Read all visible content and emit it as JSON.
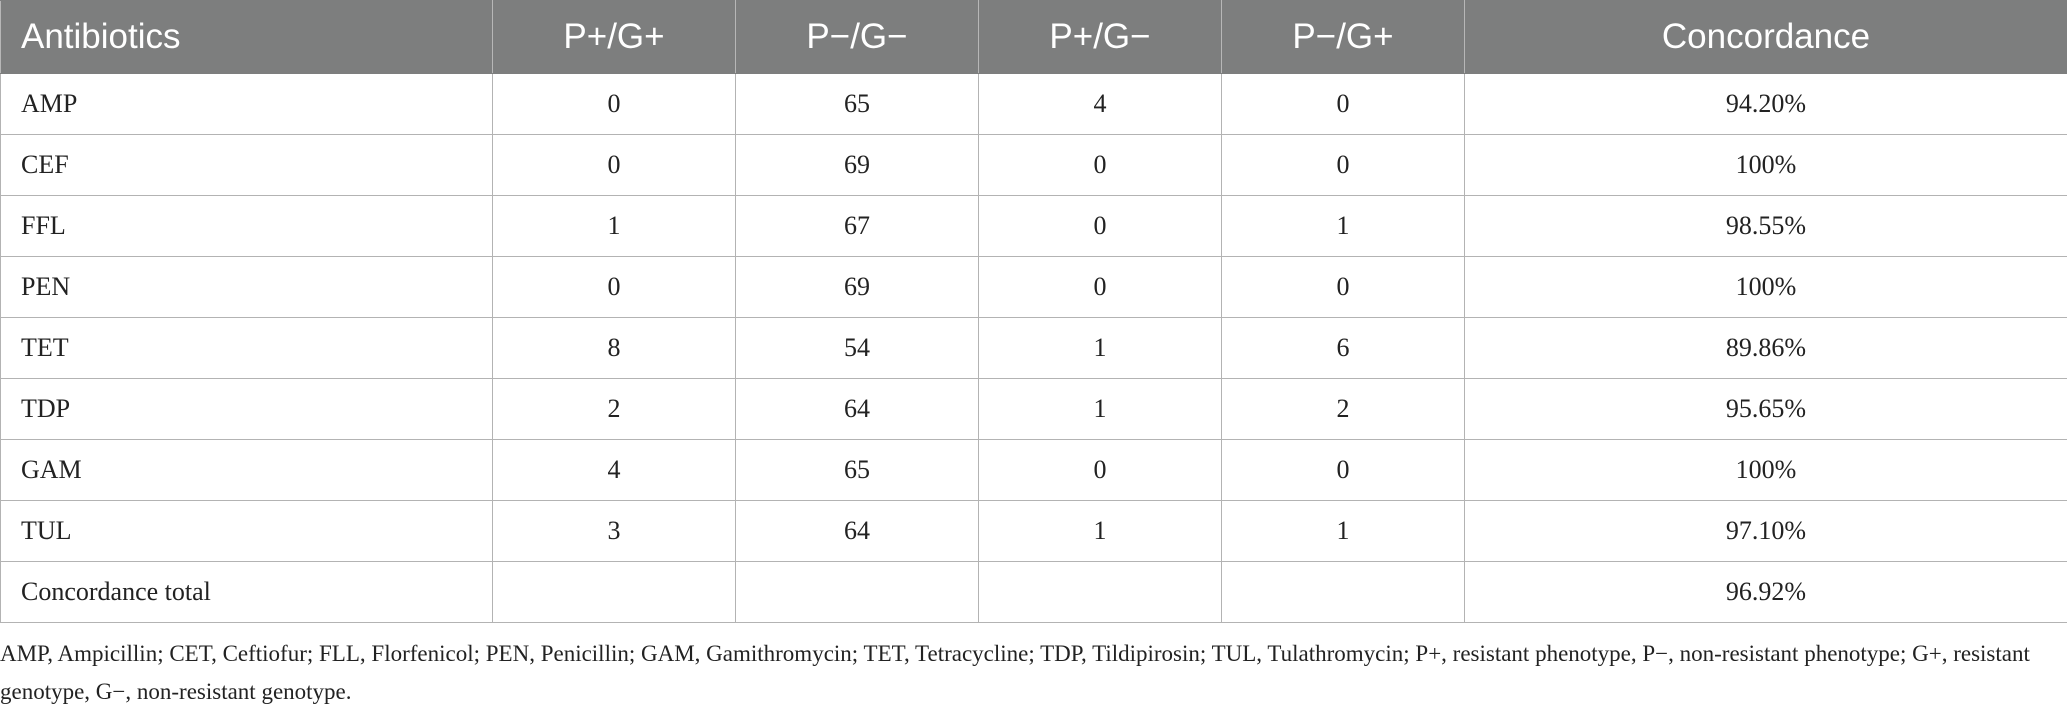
{
  "table": {
    "headers": [
      "Antibiotics",
      "P+/G+",
      "P−/G−",
      "P+/G−",
      "P−/G+",
      "Concordance"
    ],
    "rows": [
      [
        "AMP",
        "0",
        "65",
        "4",
        "0",
        "94.20%"
      ],
      [
        "CEF",
        "0",
        "69",
        "0",
        "0",
        "100%"
      ],
      [
        "FFL",
        "1",
        "67",
        "0",
        "1",
        "98.55%"
      ],
      [
        "PEN",
        "0",
        "69",
        "0",
        "0",
        "100%"
      ],
      [
        "TET",
        "8",
        "54",
        "1",
        "6",
        "89.86%"
      ],
      [
        "TDP",
        "2",
        "64",
        "1",
        "2",
        "95.65%"
      ],
      [
        "GAM",
        "4",
        "65",
        "0",
        "0",
        "100%"
      ],
      [
        "TUL",
        "3",
        "64",
        "1",
        "1",
        "97.10%"
      ],
      [
        "Concordance total",
        "",
        "",
        "",
        "",
        "96.92%"
      ]
    ]
  },
  "footnote": "AMP, Ampicillin; CET, Ceftiofur; FLL, Florfenicol; PEN, Penicillin; GAM, Gamithromycin; TET, Tetracycline; TDP, Tildipirosin; TUL, Tulathromycin; P+, resistant phenotype, P−, non-resistant phenotype; G+, resistant genotype, G−, non-resistant genotype.",
  "colors": {
    "header_bg": "#7d7e7e",
    "header_text": "#ffffff",
    "grid": "#b3b3b3",
    "body_text": "#222222"
  }
}
